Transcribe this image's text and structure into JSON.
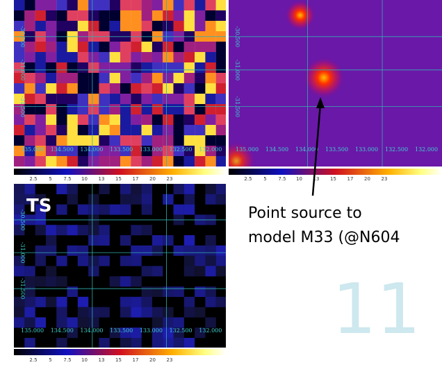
{
  "panels": [
    {
      "y_labels": [
        "-30.500",
        "-31.000",
        "-31.500"
      ],
      "x_labels": [
        "135.000",
        "134.500",
        "134.000",
        "133.500",
        "133.000",
        "132.500",
        "132.000"
      ],
      "colorbar_ticks": [
        "2.5",
        "5",
        "7.5",
        "10",
        "13",
        "15",
        "17",
        "20",
        "23"
      ]
    },
    {
      "y_labels": [
        "-30.500",
        "-31.000",
        "-31.500"
      ],
      "x_labels": [
        "135.000",
        "134.500",
        "134.000",
        "133.500",
        "133.000",
        "132.500",
        "132.000"
      ],
      "colorbar_ticks": [
        "2.5",
        "5",
        "7.5",
        "10",
        "13",
        "15",
        "17",
        "20",
        "23"
      ]
    },
    {
      "label": "TS",
      "y_labels": [
        "-30.500",
        "-31.000",
        "-31.500"
      ],
      "x_labels": [
        "135.000",
        "134.500",
        "134.000",
        "133.500",
        "133.000",
        "132.500",
        "132.000"
      ],
      "colorbar_ticks": [
        "2.5",
        "5",
        "7.5",
        "10",
        "13",
        "15",
        "17",
        "20",
        "23"
      ]
    }
  ],
  "annotation": {
    "lines": [
      "Point source to",
      "model M33 (@N604"
    ]
  },
  "slide_number": "11"
}
